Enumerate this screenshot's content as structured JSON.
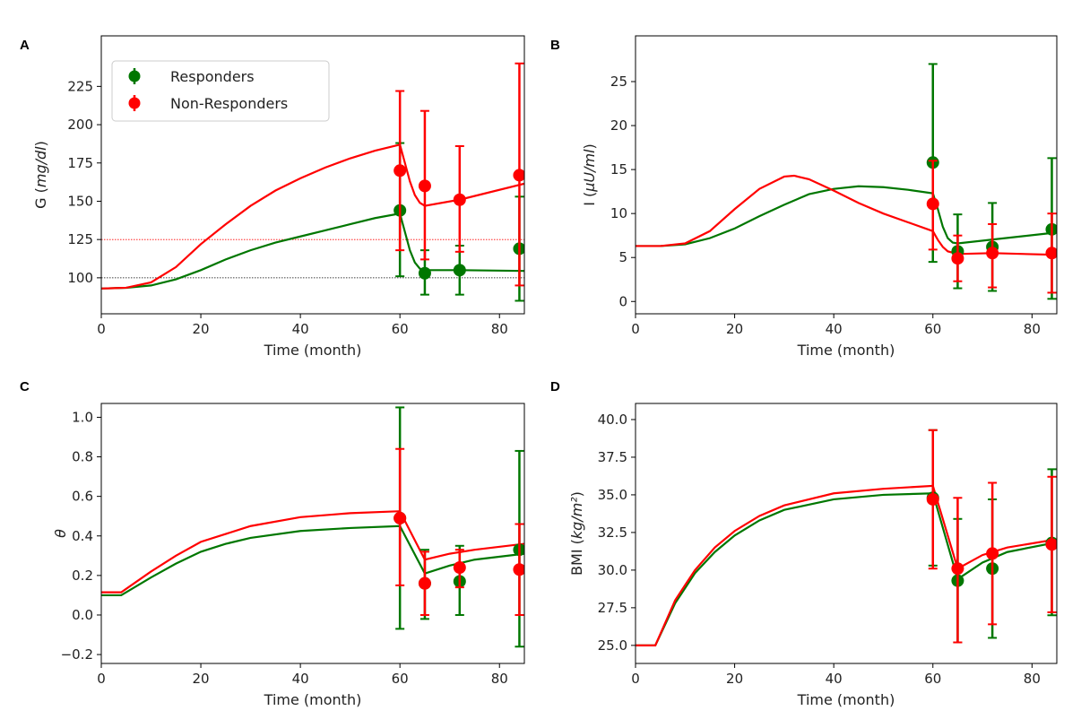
{
  "chart_data": [
    {
      "panel": "A",
      "type": "line",
      "xlabel": "Time (month)",
      "ylabel_prefix": "G (",
      "ylabel_unit": "mg/dl",
      "ylabel_suffix": ")",
      "xlim": [
        0,
        85
      ],
      "ylim": [
        76.5,
        258
      ],
      "xticks": [
        0,
        20,
        40,
        60,
        80
      ],
      "yticks": [
        100,
        125,
        150,
        175,
        200,
        225
      ],
      "hlines": [
        {
          "y": 125,
          "color": "#ff0000"
        },
        {
          "y": 100,
          "color": "#000000"
        }
      ],
      "legend": {
        "placement": "top-left",
        "entries": [
          "Responders",
          "Non-Responders"
        ]
      },
      "series": [
        {
          "name": "Responders",
          "color": "#007700",
          "curve": [
            [
              0,
              93
            ],
            [
              5,
              93.5
            ],
            [
              10,
              95
            ],
            [
              15,
              99
            ],
            [
              20,
              105
            ],
            [
              25,
              112
            ],
            [
              30,
              118
            ],
            [
              35,
              123
            ],
            [
              40,
              127
            ],
            [
              45,
              131
            ],
            [
              50,
              135
            ],
            [
              55,
              139
            ],
            [
              60,
              142
            ],
            [
              61,
              130
            ],
            [
              62,
              118
            ],
            [
              63,
              110
            ],
            [
              64,
              106
            ],
            [
              65,
              105
            ],
            [
              72,
              105
            ],
            [
              85,
              104.5
            ]
          ],
          "points": [
            {
              "x": 60,
              "y": 144,
              "lo": 101,
              "hi": 188
            },
            {
              "x": 65,
              "y": 103,
              "lo": 89,
              "hi": 118
            },
            {
              "x": 72,
              "y": 105,
              "lo": 89,
              "hi": 121
            },
            {
              "x": 84,
              "y": 119,
              "lo": 85,
              "hi": 153
            }
          ]
        },
        {
          "name": "Non-Responders",
          "color": "#ff0000",
          "curve": [
            [
              0,
              93
            ],
            [
              5,
              93.5
            ],
            [
              10,
              97
            ],
            [
              15,
              107
            ],
            [
              20,
              122
            ],
            [
              25,
              135
            ],
            [
              30,
              147
            ],
            [
              35,
              157
            ],
            [
              40,
              165
            ],
            [
              45,
              172
            ],
            [
              50,
              178
            ],
            [
              55,
              183
            ],
            [
              60,
              187
            ],
            [
              61,
              175
            ],
            [
              62,
              163
            ],
            [
              63,
              154
            ],
            [
              64,
              149
            ],
            [
              65,
              147
            ],
            [
              72,
              151
            ],
            [
              85,
              161.5
            ]
          ],
          "points": [
            {
              "x": 60,
              "y": 170,
              "lo": 118,
              "hi": 222
            },
            {
              "x": 65,
              "y": 160,
              "lo": 112,
              "hi": 209
            },
            {
              "x": 72,
              "y": 151,
              "lo": 117,
              "hi": 186
            },
            {
              "x": 84,
              "y": 167,
              "lo": 95,
              "hi": 240
            }
          ]
        }
      ]
    },
    {
      "panel": "B",
      "type": "line",
      "xlabel": "Time (month)",
      "ylabel_prefix": "I (",
      "ylabel_unit": "μU/ml",
      "ylabel_suffix": ")",
      "xlim": [
        0,
        85
      ],
      "ylim": [
        -1.4,
        30.2
      ],
      "xticks": [
        0,
        20,
        40,
        60,
        80
      ],
      "yticks": [
        0,
        5,
        10,
        15,
        20,
        25
      ],
      "series": [
        {
          "name": "Responders",
          "color": "#007700",
          "curve": [
            [
              0,
              6.3
            ],
            [
              5,
              6.3
            ],
            [
              10,
              6.5
            ],
            [
              15,
              7.2
            ],
            [
              20,
              8.3
            ],
            [
              25,
              9.7
            ],
            [
              30,
              11
            ],
            [
              35,
              12.2
            ],
            [
              40,
              12.8
            ],
            [
              45,
              13.1
            ],
            [
              50,
              13
            ],
            [
              55,
              12.7
            ],
            [
              60,
              12.3
            ],
            [
              61,
              10.5
            ],
            [
              62,
              8.5
            ],
            [
              63,
              7.2
            ],
            [
              64,
              6.7
            ],
            [
              65,
              6.6
            ],
            [
              85,
              7.85
            ]
          ],
          "points": [
            {
              "x": 60,
              "y": 15.8,
              "lo": 4.5,
              "hi": 27
            },
            {
              "x": 65,
              "y": 5.7,
              "lo": 1.5,
              "hi": 9.9
            },
            {
              "x": 72,
              "y": 6.2,
              "lo": 1.2,
              "hi": 11.2
            },
            {
              "x": 84,
              "y": 8.2,
              "lo": 0.3,
              "hi": 16.3
            }
          ]
        },
        {
          "name": "Non-Responders",
          "color": "#ff0000",
          "curve": [
            [
              0,
              6.3
            ],
            [
              5,
              6.3
            ],
            [
              10,
              6.6
            ],
            [
              15,
              8
            ],
            [
              20,
              10.5
            ],
            [
              25,
              12.8
            ],
            [
              30,
              14.2
            ],
            [
              32,
              14.3
            ],
            [
              35,
              13.9
            ],
            [
              40,
              12.6
            ],
            [
              45,
              11.2
            ],
            [
              50,
              10
            ],
            [
              55,
              9
            ],
            [
              60,
              8
            ],
            [
              61,
              7
            ],
            [
              62,
              6.2
            ],
            [
              63,
              5.7
            ],
            [
              65,
              5.4
            ],
            [
              72,
              5.5
            ],
            [
              85,
              5.3
            ]
          ],
          "points": [
            {
              "x": 60,
              "y": 11.1,
              "lo": 5.9,
              "hi": 16
            },
            {
              "x": 65,
              "y": 4.9,
              "lo": 2.3,
              "hi": 7.5
            },
            {
              "x": 72,
              "y": 5.5,
              "lo": 1.6,
              "hi": 8.8
            },
            {
              "x": 84,
              "y": 5.5,
              "lo": 1,
              "hi": 10
            }
          ]
        }
      ]
    },
    {
      "panel": "C",
      "type": "line",
      "xlabel": "Time (month)",
      "ylabel_prefix": "",
      "ylabel_unit": "θ",
      "ylabel_suffix": "",
      "xlim": [
        0,
        85
      ],
      "ylim": [
        -0.245,
        1.07
      ],
      "xticks": [
        0,
        20,
        40,
        60,
        80
      ],
      "yticks": [
        -0.2,
        0.0,
        0.2,
        0.4,
        0.6,
        0.8,
        1.0
      ],
      "series": [
        {
          "name": "Responders",
          "color": "#007700",
          "curve": [
            [
              0,
              0.1
            ],
            [
              4,
              0.1
            ],
            [
              10,
              0.19
            ],
            [
              15,
              0.26
            ],
            [
              20,
              0.32
            ],
            [
              25,
              0.36
            ],
            [
              30,
              0.39
            ],
            [
              40,
              0.425
            ],
            [
              50,
              0.44
            ],
            [
              60,
              0.45
            ],
            [
              65,
              0.21
            ],
            [
              70,
              0.25
            ],
            [
              75,
              0.28
            ],
            [
              85,
              0.31
            ]
          ],
          "points": [
            {
              "x": 60,
              "y": 0.49,
              "lo": -0.07,
              "hi": 1.05
            },
            {
              "x": 65,
              "y": 0.16,
              "lo": -0.02,
              "hi": 0.33
            },
            {
              "x": 72,
              "y": 0.17,
              "lo": 0,
              "hi": 0.35
            },
            {
              "x": 84,
              "y": 0.33,
              "lo": -0.16,
              "hi": 0.83
            }
          ]
        },
        {
          "name": "Non-Responders",
          "color": "#ff0000",
          "curve": [
            [
              0,
              0.115
            ],
            [
              4,
              0.115
            ],
            [
              10,
              0.22
            ],
            [
              15,
              0.3
            ],
            [
              20,
              0.37
            ],
            [
              25,
              0.41
            ],
            [
              30,
              0.45
            ],
            [
              40,
              0.495
            ],
            [
              50,
              0.515
            ],
            [
              60,
              0.525
            ],
            [
              65,
              0.28
            ],
            [
              70,
              0.31
            ],
            [
              75,
              0.33
            ],
            [
              85,
              0.36
            ]
          ],
          "points": [
            {
              "x": 60,
              "y": 0.49,
              "lo": 0.15,
              "hi": 0.84
            },
            {
              "x": 65,
              "y": 0.16,
              "lo": 0,
              "hi": 0.32
            },
            {
              "x": 72,
              "y": 0.24,
              "lo": 0.14,
              "hi": 0.33
            },
            {
              "x": 84,
              "y": 0.23,
              "lo": 0,
              "hi": 0.46
            }
          ]
        }
      ]
    },
    {
      "panel": "D",
      "type": "line",
      "xlabel": "Time (month)",
      "ylabel_prefix": "BMI (",
      "ylabel_unit": "kg/m²",
      "ylabel_suffix": ")",
      "xlim": [
        0,
        85
      ],
      "ylim": [
        23.8,
        41.07
      ],
      "xticks": [
        0,
        20,
        40,
        60,
        80
      ],
      "yticks": [
        25.0,
        27.5,
        30.0,
        32.5,
        35.0,
        37.5,
        40.0
      ],
      "series": [
        {
          "name": "Responders",
          "color": "#007700",
          "curve": [
            [
              0,
              25
            ],
            [
              4,
              25
            ],
            [
              8,
              27.8
            ],
            [
              12,
              29.8
            ],
            [
              16,
              31.2
            ],
            [
              20,
              32.3
            ],
            [
              25,
              33.3
            ],
            [
              30,
              34
            ],
            [
              40,
              34.7
            ],
            [
              50,
              35
            ],
            [
              60,
              35.1
            ],
            [
              65,
              29.4
            ],
            [
              70,
              30.5
            ],
            [
              75,
              31.2
            ],
            [
              85,
              31.85
            ]
          ],
          "points": [
            {
              "x": 60,
              "y": 34.8,
              "lo": 30.3,
              "hi": 39.3
            },
            {
              "x": 65,
              "y": 29.3,
              "lo": 25.2,
              "hi": 33.4
            },
            {
              "x": 72,
              "y": 30.1,
              "lo": 25.5,
              "hi": 34.7
            },
            {
              "x": 84,
              "y": 31.8,
              "lo": 27,
              "hi": 36.7
            }
          ]
        },
        {
          "name": "Non-Responders",
          "color": "#ff0000",
          "curve": [
            [
              0,
              25
            ],
            [
              4,
              25
            ],
            [
              8,
              28
            ],
            [
              12,
              30
            ],
            [
              16,
              31.5
            ],
            [
              20,
              32.6
            ],
            [
              25,
              33.6
            ],
            [
              30,
              34.3
            ],
            [
              40,
              35.1
            ],
            [
              50,
              35.4
            ],
            [
              60,
              35.6
            ],
            [
              65,
              30.1
            ],
            [
              70,
              31
            ],
            [
              75,
              31.5
            ],
            [
              85,
              32.05
            ]
          ],
          "points": [
            {
              "x": 60,
              "y": 34.7,
              "lo": 30.1,
              "hi": 39.3
            },
            {
              "x": 65,
              "y": 30.1,
              "lo": 25.2,
              "hi": 34.8
            },
            {
              "x": 72,
              "y": 31.1,
              "lo": 26.4,
              "hi": 35.8
            },
            {
              "x": 84,
              "y": 31.7,
              "lo": 27.2,
              "hi": 36.2
            }
          ]
        }
      ]
    }
  ]
}
